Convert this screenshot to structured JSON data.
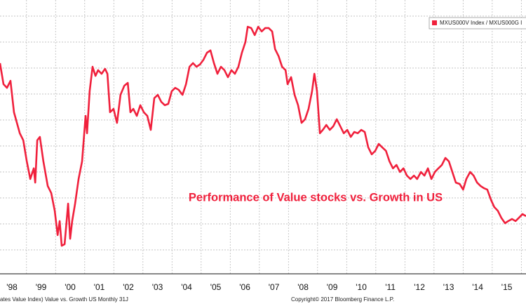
{
  "chart_data": {
    "type": "line",
    "annotation": "Performance of Value stocks vs. Growth in US",
    "footer_left": "ates Value Index) Value vs. Growth US  Monthly 31J",
    "footer_right": "Copyright© 2017 Bloomberg Finance L.P.",
    "xlim": [
      1998.09,
      2016.16
    ],
    "ylim": [
      0.08,
      10.62
    ],
    "xticks": [
      {
        "value": 1998.5,
        "label": "'98"
      },
      {
        "value": 1999.5,
        "label": "'99"
      },
      {
        "value": 2000.5,
        "label": "'00"
      },
      {
        "value": 2001.5,
        "label": "'01"
      },
      {
        "value": 2002.5,
        "label": "'02"
      },
      {
        "value": 2003.5,
        "label": "'03"
      },
      {
        "value": 2004.5,
        "label": "'04"
      },
      {
        "value": 2005.5,
        "label": "'05"
      },
      {
        "value": 2006.5,
        "label": "'06"
      },
      {
        "value": 2007.5,
        "label": "'07"
      },
      {
        "value": 2008.5,
        "label": "'08"
      },
      {
        "value": 2009.5,
        "label": "'09"
      },
      {
        "value": 2010.5,
        "label": "'10"
      },
      {
        "value": 2011.5,
        "label": "'11"
      },
      {
        "value": 2012.5,
        "label": "'12"
      },
      {
        "value": 2013.5,
        "label": "'13"
      },
      {
        "value": 2014.5,
        "label": "'14"
      },
      {
        "value": 2015.5,
        "label": "'15"
      }
    ],
    "xgrid": [
      1999,
      2000,
      2001,
      2002,
      2003,
      2004,
      2005,
      2006,
      2007,
      2008,
      2009,
      2010,
      2011,
      2012,
      2013,
      2014,
      2015,
      2016
    ],
    "ygrid": [
      1,
      2,
      3,
      4,
      5,
      6,
      7,
      8,
      9,
      10
    ],
    "grid": true,
    "legend_position": "upper right",
    "series": [
      {
        "name": "MXUS000V Index / MXUS000G I",
        "color": "#f0203c",
        "x": [
          1998.09,
          1998.21,
          1998.33,
          1998.45,
          1998.57,
          1998.77,
          1998.89,
          1999.01,
          1999.13,
          1999.25,
          1999.3,
          1999.37,
          1999.46,
          1999.58,
          1999.73,
          1999.85,
          1999.97,
          2000.07,
          2000.14,
          2000.21,
          2000.31,
          2000.43,
          2000.5,
          2000.57,
          2000.67,
          2000.79,
          2000.91,
          2001.03,
          2001.08,
          2001.17,
          2001.27,
          2001.37,
          2001.46,
          2001.58,
          2001.7,
          2001.78,
          2001.87,
          2001.99,
          2002.11,
          2002.23,
          2002.36,
          2002.48,
          2002.57,
          2002.67,
          2002.79,
          2002.91,
          2003.03,
          2003.15,
          2003.27,
          2003.39,
          2003.51,
          2003.63,
          2003.75,
          2003.87,
          2003.99,
          2004.11,
          2004.23,
          2004.36,
          2004.48,
          2004.6,
          2004.72,
          2004.84,
          2004.96,
          2005.08,
          2005.2,
          2005.32,
          2005.44,
          2005.56,
          2005.68,
          2005.8,
          2005.92,
          2006.04,
          2006.16,
          2006.28,
          2006.4,
          2006.52,
          2006.6,
          2006.72,
          2006.84,
          2006.96,
          2007.08,
          2007.2,
          2007.32,
          2007.44,
          2007.54,
          2007.66,
          2007.78,
          2007.9,
          2007.97,
          2008.09,
          2008.21,
          2008.33,
          2008.45,
          2008.57,
          2008.69,
          2008.81,
          2008.89,
          2008.98,
          2009.08,
          2009.18,
          2009.3,
          2009.42,
          2009.54,
          2009.66,
          2009.78,
          2009.9,
          2010.02,
          2010.14,
          2010.26,
          2010.38,
          2010.5,
          2010.62,
          2010.74,
          2010.86,
          2010.98,
          2011.1,
          2011.22,
          2011.35,
          2011.47,
          2011.59,
          2011.71,
          2011.83,
          2011.95,
          2012.07,
          2012.19,
          2012.31,
          2012.42,
          2012.55,
          2012.67,
          2012.79,
          2012.91,
          2013.03,
          2013.15,
          2013.27,
          2013.39,
          2013.51,
          2013.63,
          2013.75,
          2013.88,
          2014.0,
          2014.11,
          2014.24,
          2014.36,
          2014.48,
          2014.6,
          2014.71,
          2014.83,
          2014.96,
          2015.07,
          2015.19,
          2015.31,
          2015.44,
          2015.55,
          2015.68,
          2015.8,
          2015.92,
          2016.04,
          2016.16
        ],
        "values": [
          8.19,
          7.38,
          7.24,
          7.51,
          6.3,
          5.49,
          5.22,
          4.41,
          3.73,
          4.14,
          3.59,
          5.22,
          5.35,
          4.41,
          3.46,
          3.19,
          2.51,
          1.57,
          2.11,
          1.16,
          1.22,
          2.78,
          1.43,
          2.11,
          2.78,
          3.73,
          4.41,
          6.16,
          5.49,
          7.11,
          8.05,
          7.7,
          7.92,
          7.78,
          7.97,
          7.78,
          6.3,
          6.43,
          5.89,
          6.97,
          7.32,
          7.43,
          6.3,
          6.43,
          6.16,
          6.57,
          6.3,
          6.16,
          5.62,
          6.84,
          6.97,
          6.7,
          6.57,
          6.62,
          7.11,
          7.24,
          7.16,
          6.97,
          7.38,
          8.05,
          8.19,
          8.05,
          8.14,
          8.32,
          8.59,
          8.68,
          8.19,
          7.78,
          8.05,
          7.92,
          7.65,
          7.92,
          7.78,
          8.05,
          8.59,
          9.0,
          9.59,
          9.54,
          9.27,
          9.59,
          9.41,
          9.54,
          9.54,
          9.41,
          8.73,
          8.46,
          8.05,
          7.92,
          7.38,
          7.65,
          6.97,
          6.57,
          5.89,
          6.03,
          6.43,
          7.11,
          7.78,
          7.11,
          5.49,
          5.62,
          5.81,
          5.62,
          5.76,
          6.03,
          5.76,
          5.49,
          5.62,
          5.35,
          5.54,
          5.49,
          5.62,
          5.54,
          4.95,
          4.68,
          4.81,
          5.08,
          4.95,
          4.81,
          4.41,
          4.14,
          4.27,
          4.0,
          4.14,
          3.86,
          3.73,
          3.86,
          3.73,
          4.0,
          3.86,
          4.14,
          3.73,
          4.0,
          4.14,
          4.27,
          4.54,
          4.41,
          4.0,
          3.59,
          3.54,
          3.32,
          3.73,
          4.0,
          3.86,
          3.59,
          3.46,
          3.38,
          3.32,
          2.92,
          2.65,
          2.51,
          2.24,
          2.03,
          2.11,
          2.19,
          2.11,
          2.24,
          2.38,
          2.3
        ]
      }
    ]
  }
}
